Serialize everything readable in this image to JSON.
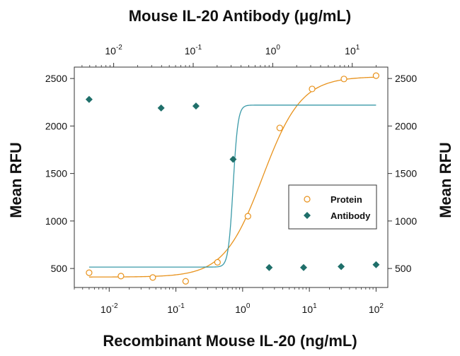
{
  "chart_data": {
    "type": "scatter",
    "title": "Mouse IL-20 Antibody (μg/mL)",
    "xlabel": "Recombinant Mouse IL-20 (ng/mL)",
    "ylabel": "Mean RFU",
    "ylabel_right": "Mean RFU",
    "x_scale": "log",
    "xlim": [
      0.003,
      150
    ],
    "ylim": [
      300,
      2620
    ],
    "y_ticks": [
      500,
      1000,
      1500,
      2000,
      2500
    ],
    "x_ticks": [
      {
        "value": 0.01,
        "base": "10",
        "exp": "-2"
      },
      {
        "value": 0.1,
        "base": "10",
        "exp": "-1"
      },
      {
        "value": 1,
        "base": "10",
        "exp": "0"
      },
      {
        "value": 10,
        "base": "10",
        "exp": "1"
      },
      {
        "value": 100,
        "base": "10",
        "exp": "2"
      }
    ],
    "top_axis": {
      "xlim": [
        0.0032,
        28
      ],
      "ticks": [
        {
          "value": 0.01,
          "base": "10",
          "exp": "-2"
        },
        {
          "value": 0.1,
          "base": "10",
          "exp": "-1"
        },
        {
          "value": 1,
          "base": "10",
          "exp": "0"
        },
        {
          "value": 10,
          "base": "10",
          "exp": "1"
        }
      ]
    },
    "legend_position": "right",
    "series": [
      {
        "name": "Protein",
        "marker": "open-circle",
        "color": "#e8921c",
        "points": [
          [
            0.005,
            455
          ],
          [
            0.015,
            420
          ],
          [
            0.045,
            405
          ],
          [
            0.14,
            365
          ],
          [
            0.42,
            565
          ],
          [
            1.2,
            1050
          ],
          [
            3.6,
            1980
          ],
          [
            11,
            2390
          ],
          [
            33,
            2495
          ],
          [
            100,
            2530
          ]
        ],
        "fit": {
          "bottom": 410,
          "top": 2520,
          "ec50": 2.0,
          "hill": 1.5
        }
      },
      {
        "name": "Antibody",
        "marker": "filled-diamond",
        "color": "#1f6f6a",
        "fit_color": "#3a9aa8",
        "points": [
          [
            0.005,
            2280
          ],
          [
            0.06,
            2190
          ],
          [
            0.2,
            2210
          ],
          [
            0.72,
            1650
          ],
          [
            2.5,
            510
          ],
          [
            8.2,
            510
          ],
          [
            30,
            520
          ],
          [
            100,
            540
          ]
        ],
        "fit": {
          "bottom": 515,
          "top": 2220,
          "ec50": 0.72,
          "hill": 12
        }
      }
    ]
  }
}
